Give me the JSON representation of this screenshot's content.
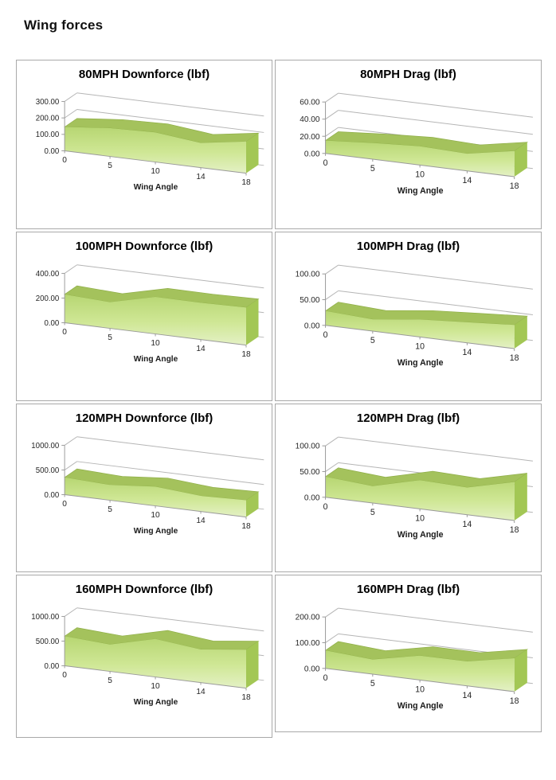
{
  "page": {
    "title": "Wing forces"
  },
  "colors": {
    "area_top": "#a4c25c",
    "area_top_edge": "#8fae48",
    "area_side": "#a3c755",
    "area_front_top": "#b7d672",
    "area_front_mid": "#cfe795",
    "area_front_bottom": "#e4f1c5",
    "gridline": "#b5b5b5",
    "axis": "#9a9a9a",
    "panel_border": "#a9a9a9",
    "text": "#262626"
  },
  "chart_data": [
    {
      "type": "area",
      "variant": "3d",
      "title": "80MPH Downforce (lbf)",
      "categories": [
        0,
        5,
        10,
        14,
        18
      ],
      "values": [
        145,
        172,
        180,
        150,
        192
      ],
      "xlabel": "Wing Angle",
      "ylabel": "",
      "yticks": [
        0,
        100,
        200,
        300
      ],
      "ytick_labels": [
        "0.00",
        "100.00",
        "200.00",
        "300.00"
      ],
      "ylim": [
        0,
        300
      ],
      "grid": true,
      "legend": "none"
    },
    {
      "type": "area",
      "variant": "3d",
      "title": "80MPH Drag (lbf)",
      "categories": [
        0,
        5,
        10,
        14,
        18
      ],
      "values": [
        15,
        19,
        22,
        20,
        30
      ],
      "xlabel": "Wing Angle",
      "ylabel": "",
      "yticks": [
        0,
        20,
        40,
        60
      ],
      "ytick_labels": [
        "0.00",
        "20.00",
        "40.00",
        "60.00"
      ],
      "ylim": [
        0,
        60
      ],
      "grid": true,
      "legend": "none"
    },
    {
      "type": "area",
      "variant": "3d",
      "title": "100MPH Downforce (lbf)",
      "categories": [
        0,
        5,
        10,
        14,
        18
      ],
      "values": [
        230,
        212,
        300,
        298,
        305
      ],
      "xlabel": "Wing Angle",
      "ylabel": "",
      "yticks": [
        0,
        200,
        400
      ],
      "ytick_labels": [
        "0.00",
        "200.00",
        "400.00"
      ],
      "ylim": [
        0,
        400
      ],
      "grid": true,
      "legend": "none"
    },
    {
      "type": "area",
      "variant": "3d",
      "title": "100MPH Drag (lbf)",
      "categories": [
        0,
        5,
        10,
        14,
        18
      ],
      "values": [
        28,
        23,
        34,
        40,
        46
      ],
      "xlabel": "Wing Angle",
      "ylabel": "",
      "yticks": [
        0,
        50,
        100
      ],
      "ytick_labels": [
        "0.00",
        "50.00",
        "100.00"
      ],
      "ylim": [
        0,
        100
      ],
      "grid": true,
      "legend": "none"
    },
    {
      "type": "area",
      "variant": "3d",
      "title": "120MPH Downforce (lbf)",
      "categories": [
        0,
        5,
        10,
        14,
        18
      ],
      "values": [
        350,
        310,
        390,
        315,
        340
      ],
      "xlabel": "Wing Angle",
      "ylabel": "",
      "yticks": [
        0,
        500,
        1000
      ],
      "ytick_labels": [
        "0.00",
        "500.00",
        "1000.00"
      ],
      "ylim": [
        0,
        1000
      ],
      "grid": true,
      "legend": "none"
    },
    {
      "type": "area",
      "variant": "3d",
      "title": "120MPH Drag (lbf)",
      "categories": [
        0,
        5,
        10,
        14,
        18
      ],
      "values": [
        40,
        33,
        56,
        53,
        75
      ],
      "xlabel": "Wing Angle",
      "ylabel": "",
      "yticks": [
        0,
        50,
        100
      ],
      "ytick_labels": [
        "0.00",
        "50.00",
        "100.00"
      ],
      "ylim": [
        0,
        100
      ],
      "grid": true,
      "legend": "none"
    },
    {
      "type": "area",
      "variant": "3d",
      "title": "160MPH Downforce (lbf)",
      "categories": [
        0,
        5,
        10,
        14,
        18
      ],
      "values": [
        600,
        545,
        770,
        670,
        780
      ],
      "xlabel": "Wing Angle",
      "ylabel": "",
      "yticks": [
        0,
        500,
        1000
      ],
      "ytick_labels": [
        "0.00",
        "500.00",
        "1000.00"
      ],
      "ylim": [
        0,
        1000
      ],
      "grid": true,
      "legend": "none"
    },
    {
      "type": "area",
      "variant": "3d",
      "title": "160MPH Drag (lbf)",
      "categories": [
        0,
        5,
        10,
        14,
        18
      ],
      "values": [
        70,
        57,
        95,
        95,
        130
      ],
      "xlabel": "Wing Angle",
      "ylabel": "",
      "yticks": [
        0,
        100,
        200
      ],
      "ytick_labels": [
        "0.00",
        "100.00",
        "200.00"
      ],
      "ylim": [
        0,
        200
      ],
      "grid": true,
      "legend": "none"
    }
  ]
}
